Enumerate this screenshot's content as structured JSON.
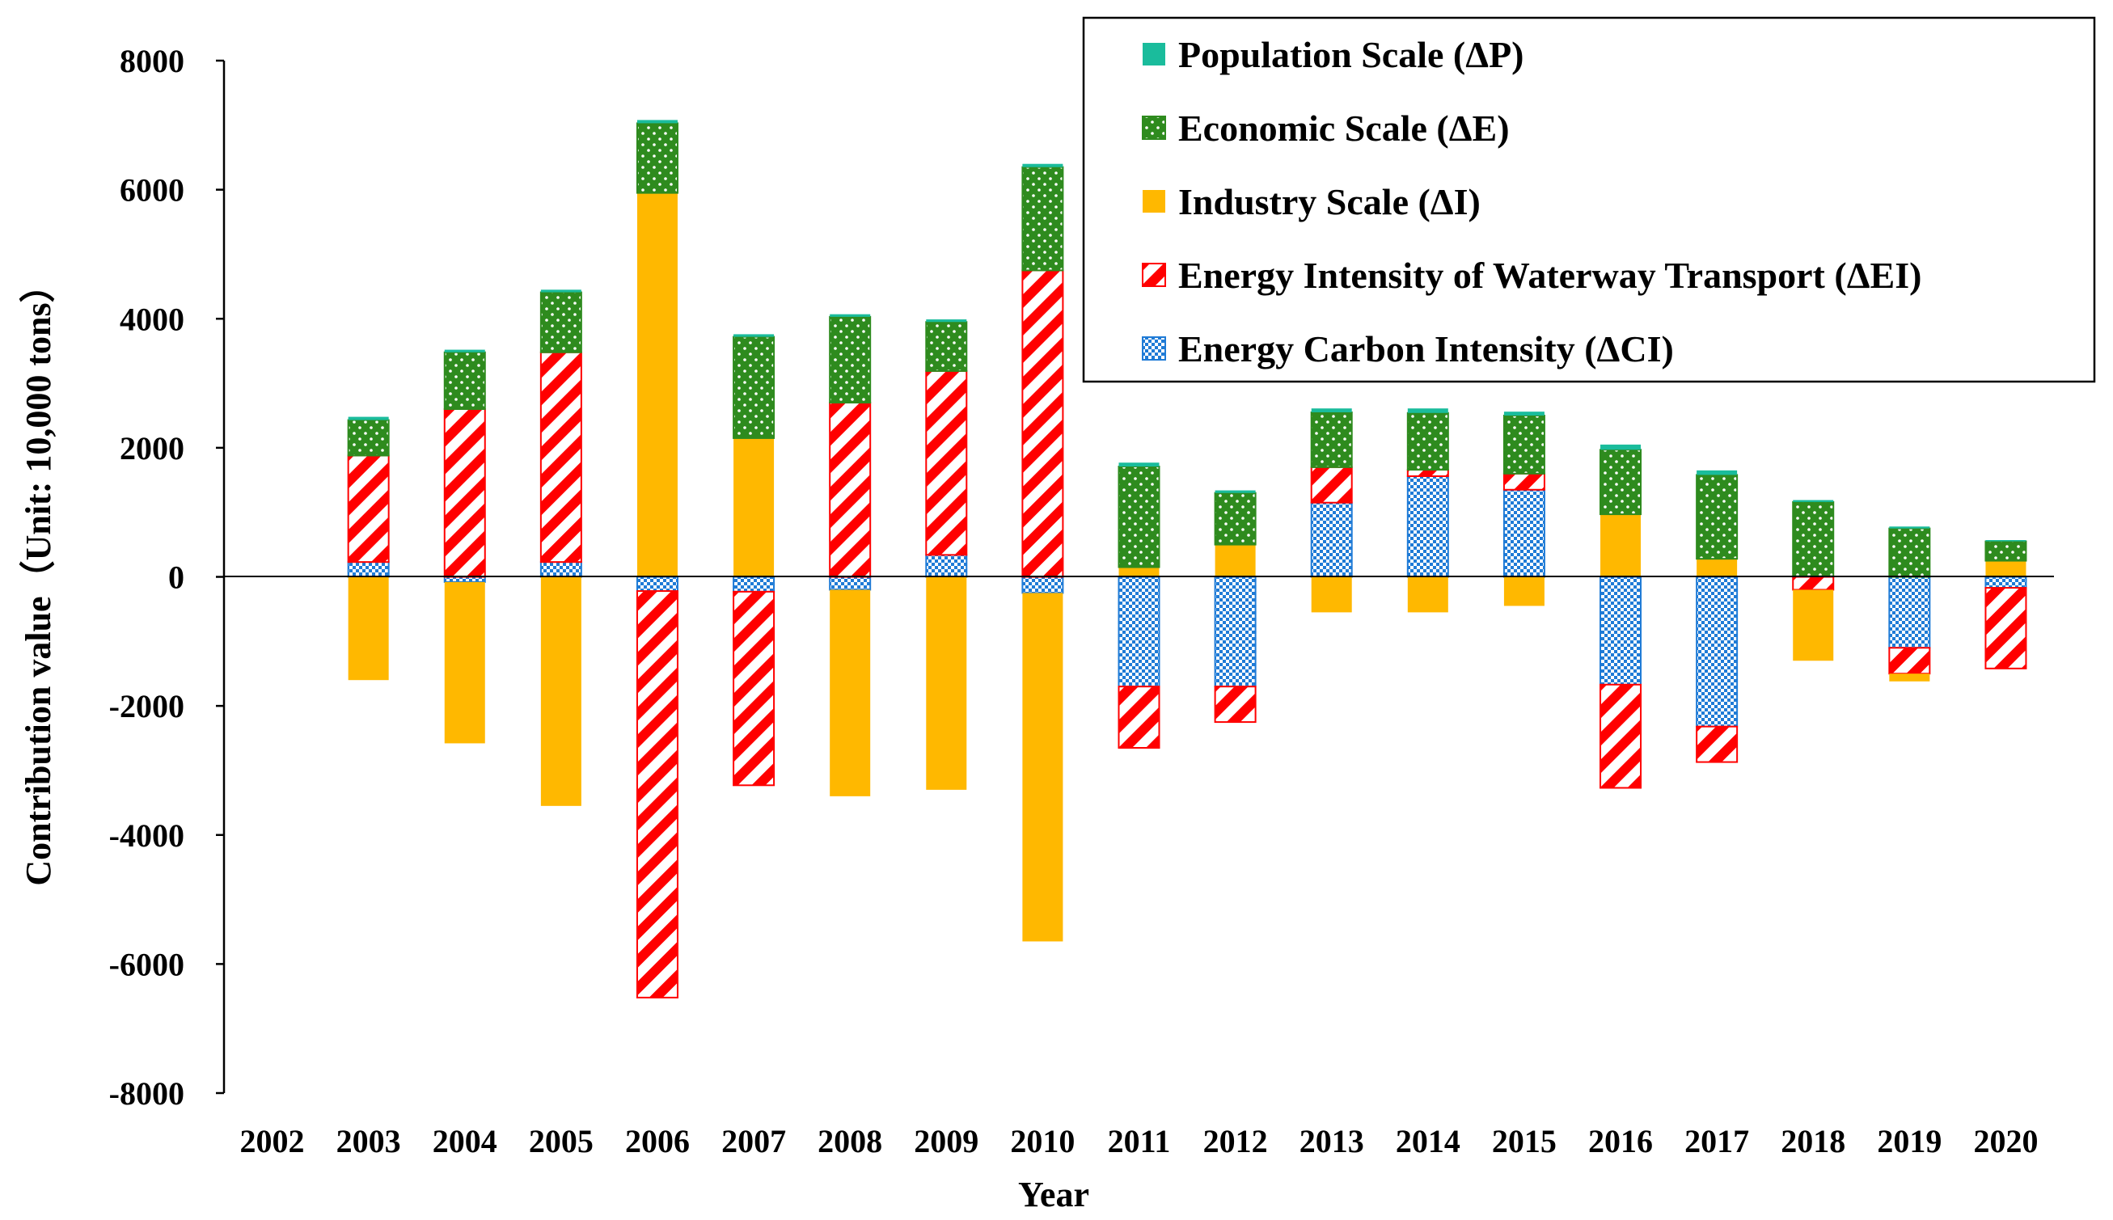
{
  "chart_data": {
    "type": "bar",
    "stacked": true,
    "title": "",
    "xlabel": "Year",
    "ylabel": "Contribution value（Unit: 10,000 tons）",
    "ylim": [
      -8000,
      8000
    ],
    "yticks": [
      8000,
      6000,
      4000,
      2000,
      0,
      -2000,
      -4000,
      -6000,
      -8000
    ],
    "legend_position": "top-right",
    "categories": [
      "2002",
      "2003",
      "2004",
      "2005",
      "2006",
      "2007",
      "2008",
      "2009",
      "2010",
      "2011",
      "2012",
      "2013",
      "2014",
      "2015",
      "2016",
      "2017",
      "2018",
      "2019",
      "2020"
    ],
    "series": [
      {
        "key": "dP",
        "name": "Population Scale (ΔP)",
        "color": "#1ABC9C",
        "pattern": "solid",
        "values": [
          0,
          50,
          40,
          40,
          50,
          40,
          40,
          40,
          50,
          60,
          40,
          60,
          70,
          60,
          80,
          70,
          30,
          30,
          20
        ]
      },
      {
        "key": "dE",
        "name": "Economic Scale (ΔE)",
        "color": "#2E8B1E",
        "pattern": "dots",
        "values": [
          0,
          550,
          880,
          930,
          1080,
          1570,
          1330,
          760,
          1600,
          1560,
          800,
          850,
          880,
          900,
          1000,
          1300,
          1150,
          750,
          300
        ]
      },
      {
        "key": "dI",
        "name": "Industry Scale (ΔI)",
        "color": "#FFB800",
        "pattern": "solid",
        "values": [
          0,
          -1600,
          -2500,
          -3550,
          5950,
          2150,
          -3200,
          -3300,
          -5400,
          150,
          500,
          -550,
          -550,
          -450,
          970,
          280,
          -1100,
          -120,
          250
        ]
      },
      {
        "key": "dEI",
        "name": "Energy Intensity of Waterway Transport (ΔEI)",
        "color": "#FF0000",
        "pattern": "stripes",
        "values": [
          0,
          1650,
          2600,
          3250,
          -6300,
          -3000,
          2700,
          2850,
          4750,
          -950,
          -550,
          550,
          100,
          250,
          -1600,
          -550,
          -200,
          -400,
          -1250
        ]
      },
      {
        "key": "dCI",
        "name": "Energy Carbon Intensity (ΔCI)",
        "color": "#1F7BD6",
        "pattern": "checks",
        "values": [
          0,
          230,
          -80,
          230,
          -220,
          -230,
          -200,
          340,
          -250,
          -1700,
          -1700,
          1150,
          1560,
          1350,
          -1670,
          -2320,
          10,
          -1100,
          -170
        ]
      }
    ]
  }
}
